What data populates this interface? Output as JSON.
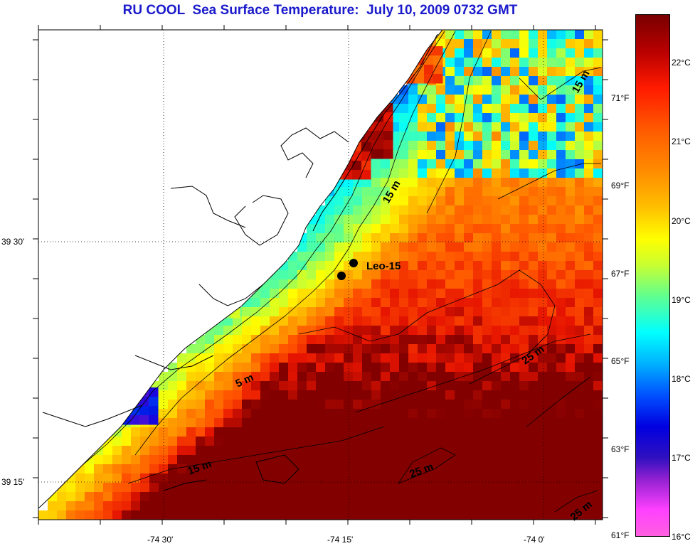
{
  "title": "RU COOL  Sea Surface Temperature:  July 10, 2009 0732 GMT",
  "map": {
    "x_ticks": [
      {
        "label": "-74 30'",
        "lon": -74.5
      },
      {
        "label": "-74 15'",
        "lon": -74.25
      },
      {
        "label": "-74 0'",
        "lon": -74.0
      }
    ],
    "y_ticks": [
      {
        "label": "39 30'",
        "lat": 39.5
      },
      {
        "label": "39 15'",
        "lat": 39.25
      }
    ],
    "station": {
      "label": "Leo-15"
    },
    "depth_labels": [
      "15 m",
      "5 m",
      "15 m",
      "25 m",
      "25 m",
      "25 m",
      "15 m"
    ]
  },
  "colorbar": {
    "celsius": [
      "22°C",
      "21°C",
      "20°C",
      "19°C",
      "18°C",
      "17°C",
      "16°C"
    ],
    "fahrenheit": [
      "71°F",
      "69°F",
      "67°F",
      "65°F",
      "63°F",
      "61°F"
    ]
  },
  "colors": {
    "title": "#1a1acc",
    "coast": "#000000",
    "land": "#ffffff"
  }
}
